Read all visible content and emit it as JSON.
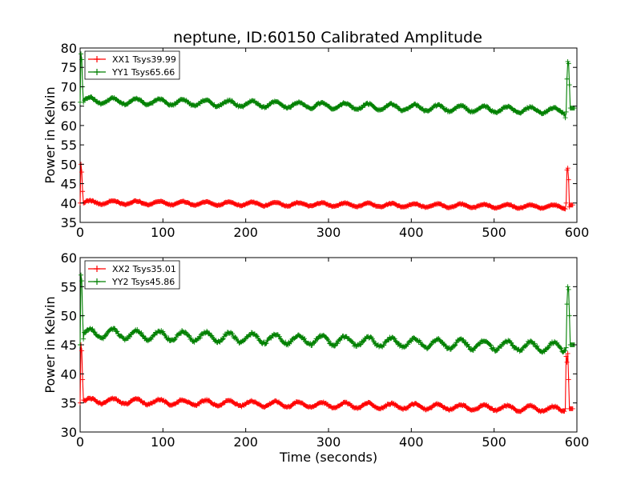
{
  "chart_data": [
    {
      "type": "line",
      "title": "neptune, ID:60150 Calibrated Amplitude",
      "xlabel": "",
      "ylabel": "Power in Kelvin",
      "xlim": [
        0,
        600
      ],
      "ylim": [
        35,
        80
      ],
      "xticks": [
        "0",
        "100",
        "200",
        "300",
        "400",
        "500",
        "600"
      ],
      "yticks": [
        "35",
        "40",
        "45",
        "50",
        "55",
        "60",
        "65",
        "70",
        "75",
        "80"
      ],
      "legend_position": "top-left",
      "grid": false,
      "series": [
        {
          "name": "XX1 Tsys39.99",
          "color": "#ff0000",
          "baseline": 40.2,
          "drift": -1.2,
          "amplitude": 0.45,
          "period": 28,
          "start": [
            [
              0,
              40
            ],
            [
              1,
              50
            ],
            [
              2,
              48
            ],
            [
              3,
              43
            ],
            [
              4,
              40
            ]
          ],
          "spikes": [
            [
              587,
              40
            ],
            [
              588,
              48.5
            ],
            [
              589,
              49
            ],
            [
              590,
              46
            ],
            [
              591,
              39
            ],
            [
              592,
              39.5
            ]
          ],
          "end_x": 595
        },
        {
          "name": "YY1 Tsys65.66",
          "color": "#008000",
          "baseline": 66.5,
          "drift": -2.8,
          "amplitude": 0.75,
          "period": 28,
          "start": [
            [
              0,
              66
            ],
            [
              1,
              78.5
            ],
            [
              2,
              77
            ],
            [
              3,
              70
            ],
            [
              4,
              66
            ]
          ],
          "spikes": [
            [
              585,
              63
            ],
            [
              586,
              62
            ],
            [
              587,
              63.5
            ],
            [
              588,
              72
            ],
            [
              589,
              76.5
            ],
            [
              590,
              76
            ],
            [
              591,
              70.5
            ],
            [
              592,
              64.5
            ],
            [
              593,
              64.5
            ]
          ],
          "end_x": 597
        }
      ]
    },
    {
      "type": "line",
      "title": "",
      "xlabel": "Time (seconds)",
      "ylabel": "Power in Kelvin",
      "xlim": [
        0,
        600
      ],
      "ylim": [
        30,
        60
      ],
      "xticks": [
        "0",
        "100",
        "200",
        "300",
        "400",
        "500",
        "600"
      ],
      "yticks": [
        "30",
        "35",
        "40",
        "45",
        "50",
        "55",
        "60"
      ],
      "legend_position": "top-left",
      "grid": false,
      "series": [
        {
          "name": "XX2 Tsys35.01",
          "color": "#ff0000",
          "baseline": 35.4,
          "drift": -1.5,
          "amplitude": 0.45,
          "period": 28,
          "start": [
            [
              0,
              35
            ],
            [
              1,
              45
            ],
            [
              2,
              44
            ],
            [
              3,
              39
            ],
            [
              4,
              35.5
            ]
          ],
          "spikes": [
            [
              586,
              34
            ],
            [
              587,
              43
            ],
            [
              588,
              42
            ],
            [
              589,
              43.5
            ],
            [
              590,
              39
            ],
            [
              591,
              34
            ],
            [
              592,
              34
            ]
          ],
          "end_x": 595
        },
        {
          "name": "YY2 Tsys45.86",
          "color": "#008000",
          "baseline": 47.0,
          "drift": -2.5,
          "amplitude": 0.8,
          "period": 28,
          "start": [
            [
              0,
              45
            ],
            [
              1,
              57
            ],
            [
              2,
              56
            ],
            [
              3,
              50
            ],
            [
              4,
              46
            ]
          ],
          "spikes": [
            [
              586,
              44
            ],
            [
              587,
              44.5
            ],
            [
              588,
              52
            ],
            [
              589,
              55
            ],
            [
              590,
              54.5
            ],
            [
              591,
              50
            ],
            [
              592,
              45
            ],
            [
              593,
              45
            ]
          ],
          "end_x": 597
        }
      ]
    }
  ]
}
